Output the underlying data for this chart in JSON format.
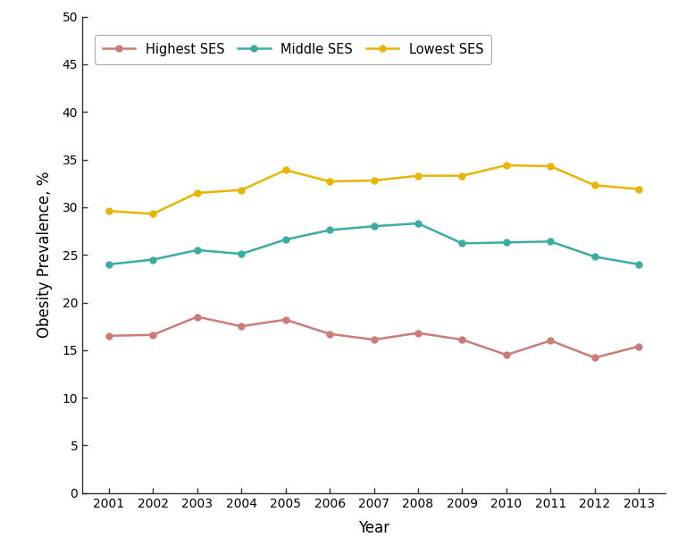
{
  "years": [
    2001,
    2002,
    2003,
    2004,
    2005,
    2006,
    2007,
    2008,
    2009,
    2010,
    2011,
    2012,
    2013
  ],
  "highest_ses": [
    16.5,
    16.6,
    18.5,
    17.5,
    18.2,
    16.7,
    16.1,
    16.8,
    16.1,
    14.5,
    16.0,
    14.2,
    15.4
  ],
  "middle_ses": [
    24.0,
    24.5,
    25.5,
    25.1,
    26.6,
    27.6,
    28.0,
    28.3,
    26.2,
    26.3,
    26.4,
    24.8,
    24.0
  ],
  "lowest_ses": [
    29.6,
    29.3,
    31.5,
    31.8,
    33.9,
    32.7,
    32.8,
    33.3,
    33.3,
    34.4,
    34.3,
    32.3,
    31.9
  ],
  "highest_color": "#cc7b78",
  "middle_color": "#3aada0",
  "lowest_color": "#e8b400",
  "xlabel": "Year",
  "ylabel": "Obesity Prevalence, %",
  "ylim": [
    0,
    50
  ],
  "yticks": [
    0,
    5,
    10,
    15,
    20,
    25,
    30,
    35,
    40,
    45,
    50
  ],
  "legend_labels": [
    "Highest SES",
    "Middle SES",
    "Lowest SES"
  ],
  "background_color": "#ffffff",
  "marker": "o",
  "markersize": 5,
  "linewidth": 1.8
}
